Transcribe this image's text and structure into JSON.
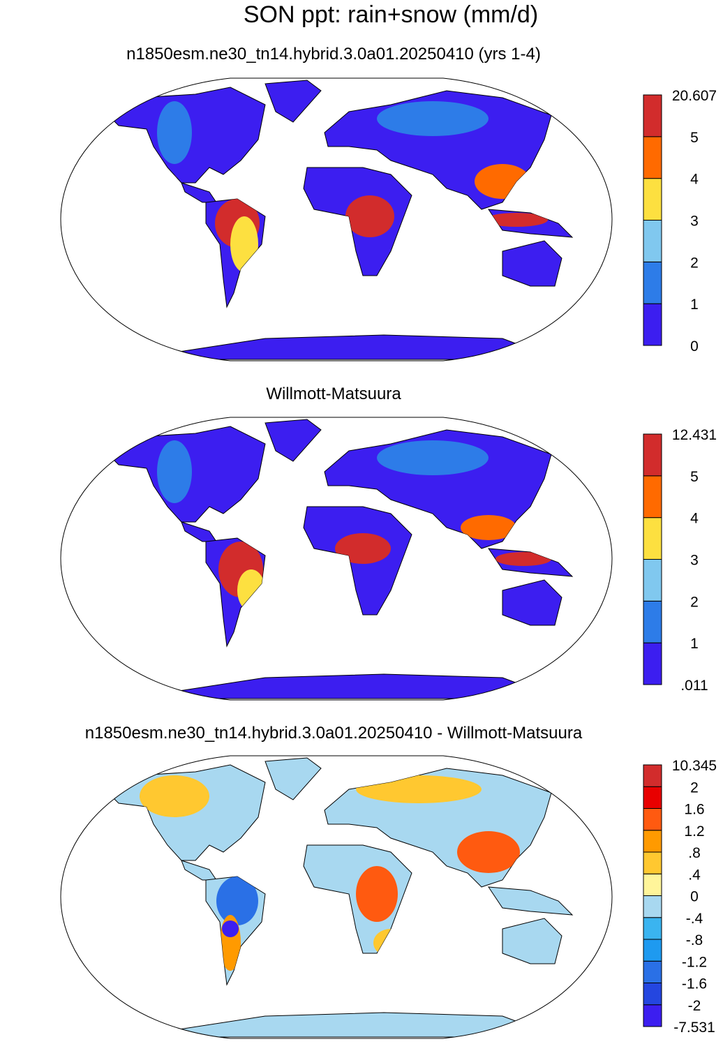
{
  "title": "SON ppt: rain+snow (mm/d)",
  "panels": [
    {
      "title": "n1850esm.ne30_tn14.hybrid.3.0a01.20250410 (yrs 1-4)",
      "colorbar": {
        "labels": [
          "0",
          "1",
          "2",
          "3",
          "4",
          "5",
          "20.607"
        ],
        "colors": [
          "#3c1ef0",
          "#2d7ce8",
          "#80c8ef",
          "#fde040",
          "#ff6a00",
          "#d22c2c"
        ]
      }
    },
    {
      "title": "Willmott-Matsuura",
      "colorbar": {
        "labels": [
          ".011",
          "1",
          "2",
          "3",
          "4",
          "5",
          "12.431"
        ],
        "colors": [
          "#3c1ef0",
          "#2d7ce8",
          "#80c8ef",
          "#fde040",
          "#ff6a00",
          "#d22c2c"
        ]
      }
    },
    {
      "title": "n1850esm.ne30_tn14.hybrid.3.0a01.20250410 - Willmott-Matsuura",
      "colorbar": {
        "labels": [
          "-7.531",
          "-2",
          "-1.6",
          "-1.2",
          "-.8",
          "-.4",
          "0",
          ".4",
          ".8",
          "1.2",
          "1.6",
          "2",
          "10.345"
        ],
        "colors": [
          "#3c1ef0",
          "#2446e0",
          "#2a70e6",
          "#1e9af0",
          "#3ab4f0",
          "#a8d8f0",
          "#fff59a",
          "#ffc830",
          "#ff9a00",
          "#ff5a10",
          "#e80000",
          "#d22c2c"
        ]
      }
    }
  ]
}
